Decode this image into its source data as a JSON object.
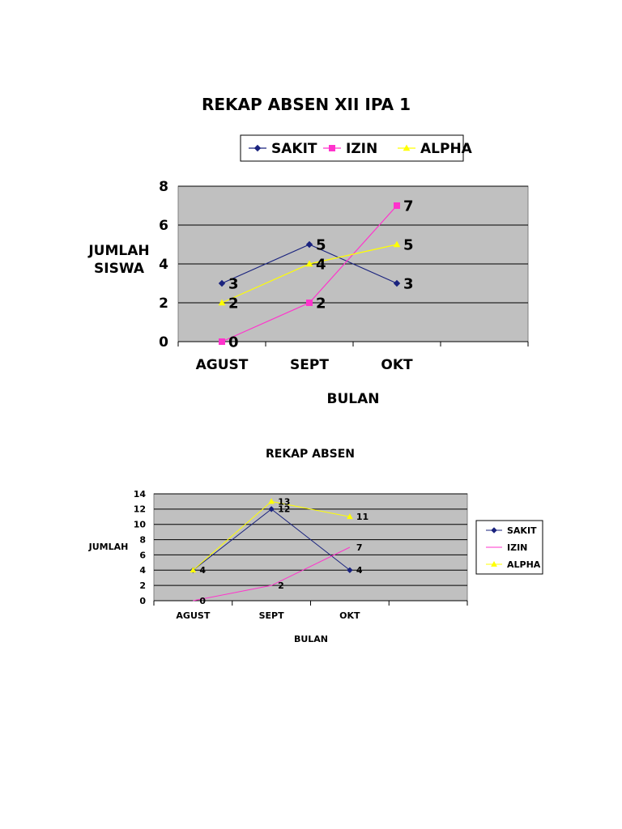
{
  "chart_data": [
    {
      "type": "line",
      "title": "REKAP ABSEN XII IPA 1",
      "xlabel": "BULAN",
      "ylabel": [
        "JUMLAH",
        "SISWA"
      ],
      "categories": [
        "AGUST",
        "SEPT",
        "OKT"
      ],
      "ylim": [
        0,
        8
      ],
      "yticks": [
        0,
        2,
        4,
        6,
        8
      ],
      "grid": true,
      "legend_position": "top",
      "series": [
        {
          "name": "SAKIT",
          "values": [
            3,
            5,
            3
          ],
          "color": "#1a237e",
          "marker": "diamond",
          "labels": [
            "3",
            "5",
            "3"
          ]
        },
        {
          "name": "IZIN",
          "values": [
            0,
            2,
            7
          ],
          "color": "#ff33cc",
          "marker": "square",
          "labels": [
            "0",
            "2",
            "7"
          ]
        },
        {
          "name": "ALPHA",
          "values": [
            2,
            4,
            5
          ],
          "color": "#ffff00",
          "marker": "triangle",
          "labels": [
            "2",
            "4",
            "5"
          ]
        }
      ]
    },
    {
      "type": "line",
      "title": "REKAP ABSEN",
      "xlabel": "BULAN",
      "ylabel": [
        "JUMLAH"
      ],
      "categories": [
        "AGUST",
        "SEPT",
        "OKT"
      ],
      "ylim": [
        0,
        14
      ],
      "yticks": [
        0,
        2,
        4,
        6,
        8,
        10,
        12,
        14
      ],
      "grid": true,
      "legend_position": "right",
      "series": [
        {
          "name": "SAKIT",
          "values": [
            4,
            12,
            4
          ],
          "color": "#1a237e",
          "marker": "diamond",
          "labels": [
            "",
            "12",
            "4"
          ]
        },
        {
          "name": "IZIN",
          "values": [
            0,
            2,
            7
          ],
          "color": "#ff33cc",
          "marker": "none",
          "labels": [
            "0",
            "2",
            "7"
          ]
        },
        {
          "name": "ALPHA",
          "values": [
            4,
            13,
            11
          ],
          "color": "#ffff00",
          "marker": "triangle",
          "labels": [
            "4",
            "13",
            "11"
          ]
        }
      ]
    }
  ]
}
